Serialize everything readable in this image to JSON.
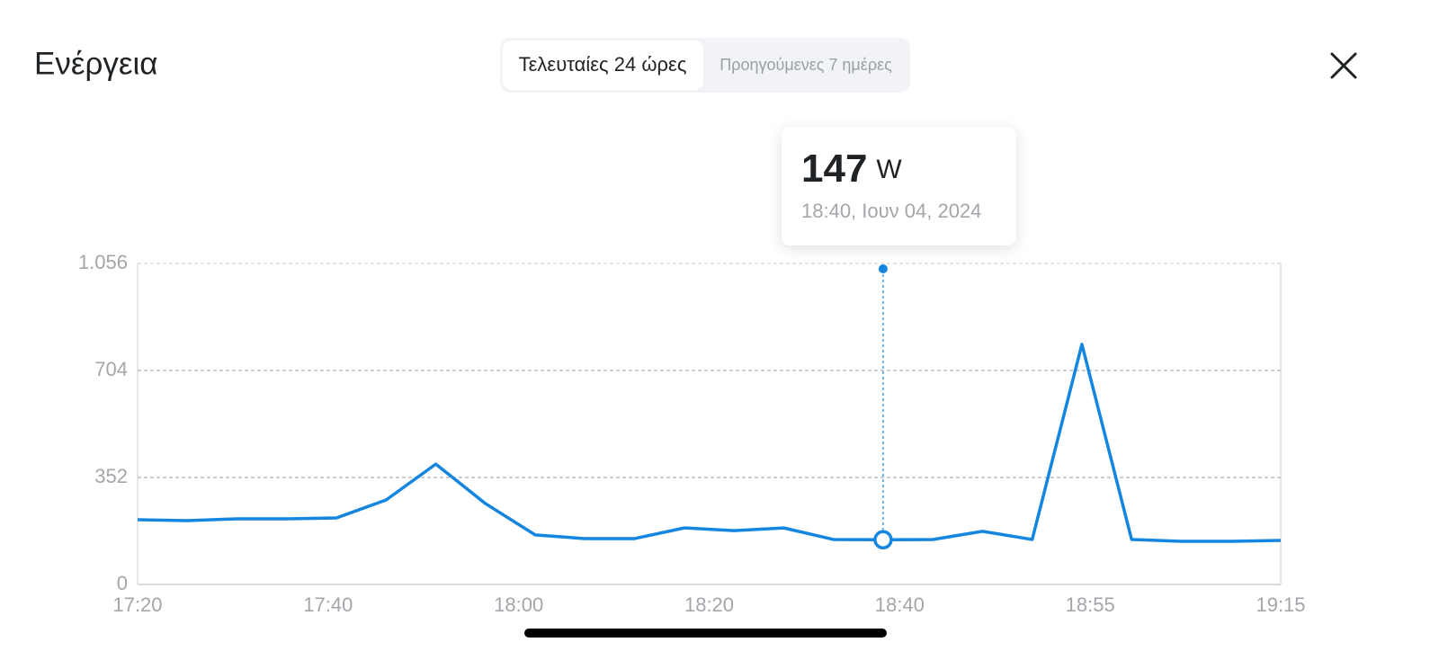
{
  "header": {
    "title": "Ενέργεια",
    "tabs": [
      "Τελευταίες 24 ώρες",
      "Προηγούμενες 7 ημέρες"
    ]
  },
  "tooltip": {
    "value": "147",
    "unit": "W",
    "time": "18:40, Ιουν 04, 2024"
  },
  "chart_data": {
    "type": "line",
    "color": "#1486e0",
    "values": [
      213,
      210,
      216,
      216,
      219,
      278,
      396,
      266,
      163,
      151,
      151,
      186,
      177,
      186,
      148,
      147,
      148,
      175,
      148,
      790,
      148,
      142,
      142,
      145
    ],
    "xtick_labels": [
      "17:20",
      "17:40",
      "18:00",
      "18:20",
      "18:40",
      "18:55",
      "19:15"
    ],
    "ylim": [
      0,
      1056
    ],
    "yticks": [
      0,
      352,
      704,
      {
        "value": 1056,
        "label": "1.056"
      }
    ],
    "grid": true
  }
}
